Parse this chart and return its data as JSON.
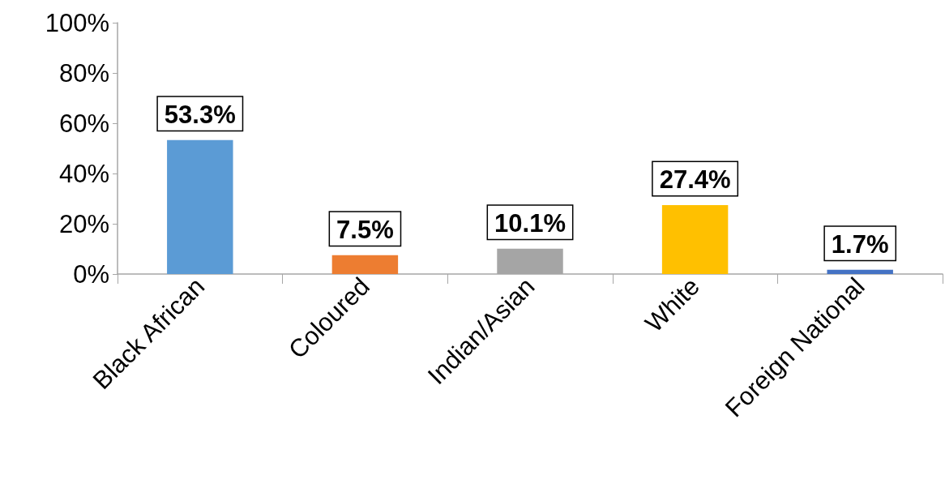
{
  "chart_data": {
    "type": "bar",
    "categories": [
      "Black African",
      "Coloured",
      "Indian/Asian",
      "White",
      "Foreign National"
    ],
    "values": [
      53.3,
      7.5,
      10.1,
      27.4,
      1.7
    ],
    "colors": [
      "#5b9bd5",
      "#ed7d31",
      "#a5a5a5",
      "#ffc000",
      "#4472c4"
    ],
    "value_labels": [
      "53.3%",
      "7.5%",
      "10.1%",
      "27.4%",
      "1.7%"
    ],
    "ylim": [
      0,
      100
    ],
    "yticks": [
      {
        "value": 0,
        "label": "0%"
      },
      {
        "value": 20,
        "label": "20%"
      },
      {
        "value": 40,
        "label": "40%"
      },
      {
        "value": 60,
        "label": "60%"
      },
      {
        "value": 80,
        "label": "80%"
      },
      {
        "value": 100,
        "label": "100%"
      }
    ],
    "grid": false
  }
}
